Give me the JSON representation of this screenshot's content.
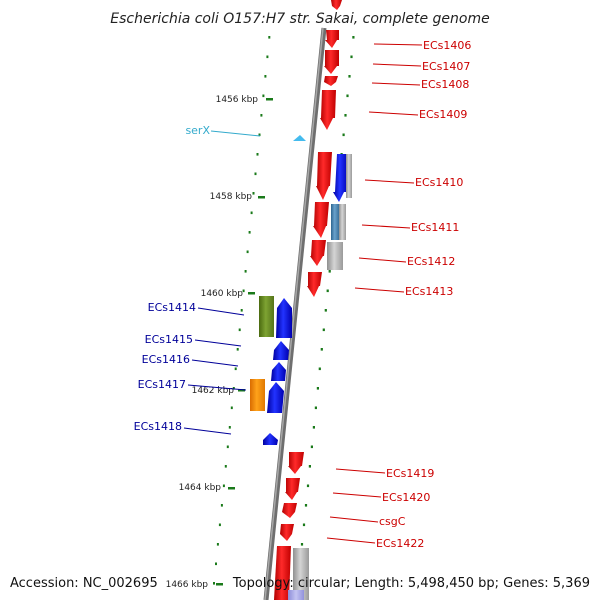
{
  "title": "Escherichia coli O157:H7 str. Sakai, complete genome",
  "accession": "Accession: NC_002695",
  "topology": "Topology: circular; Length: 5,498,450 bp; Genes: 5,369",
  "colors": {
    "forward_label": "#cc0000",
    "reverse_label": "#000099",
    "rna_label": "#33aacc",
    "red": "#ee0000",
    "blue": "#0000ee",
    "green": "#6b8e23",
    "orange": "#ff8c00",
    "steel": "#4682b4",
    "gray": "#b0b0b0",
    "cyan": "#44bbee",
    "tick": "#1a7a1a",
    "backbone": "#888888"
  },
  "kbp_ticks": [
    "1456 kbp",
    "1458 kbp",
    "1460 kbp",
    "1462 kbp",
    "1464 kbp",
    "1466 kbp"
  ],
  "forward_labels": [
    "ECs1406",
    "ECs1407",
    "ECs1408",
    "ECs1409",
    "ECs1410",
    "ECs1411",
    "ECs1412",
    "ECs1413",
    "ECs1419",
    "ECs1420",
    "csgC",
    "ECs1422"
  ],
  "reverse_labels": [
    "ECs1414",
    "ECs1415",
    "ECs1416",
    "ECs1417",
    "ECs1418"
  ],
  "rna_labels": [
    "serX"
  ]
}
